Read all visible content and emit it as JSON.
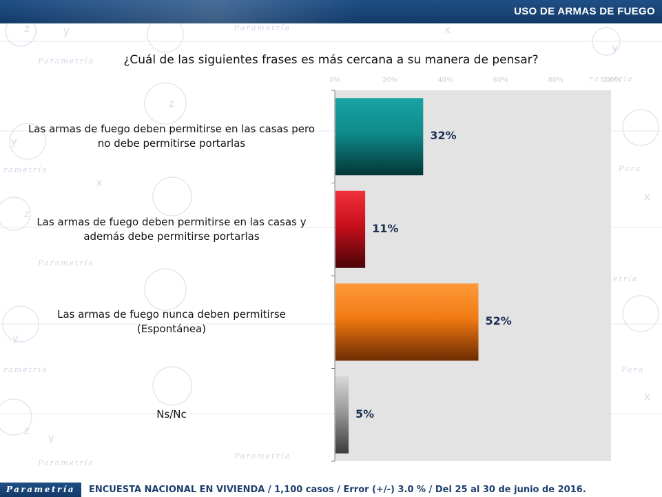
{
  "header": {
    "title": "USO DE ARMAS DE FUEGO"
  },
  "question": "¿Cuál de las siguientes frases es más cercana a su manera de pensar?",
  "axis_ticks": [
    "0%",
    "20%",
    "40%",
    "60%",
    "80%",
    "100%"
  ],
  "chart_data": {
    "type": "bar",
    "orientation": "horizontal",
    "title": "¿Cuál de las siguientes frases es más cercana a su manera de pensar?",
    "xlim": [
      0,
      100
    ],
    "x_ticks": [
      0,
      20,
      40,
      60,
      80,
      100
    ],
    "categories": [
      {
        "line1": "Las armas de fuego deben permitirse en las casas pero",
        "line2": "no debe permitirse portarlas"
      },
      {
        "line1": "Las armas de fuego deben permitirse en las casas y",
        "line2": "además debe permitirse portarlas"
      },
      {
        "line1": "Las armas de fuego nunca deben permitirse",
        "line2": "(Espontánea)"
      },
      {
        "line1": "Ns/Nc",
        "line2": ""
      }
    ],
    "values": [
      32,
      11,
      52,
      5
    ],
    "value_labels": [
      "32%",
      "11%",
      "52%",
      "5%"
    ],
    "bar_colors": [
      {
        "top": "#1aa3a3",
        "mid": "#0f8a8a",
        "bottom": "#043636"
      },
      {
        "top": "#f0303a",
        "mid": "#c8101c",
        "bottom": "#4a0408"
      },
      {
        "top": "#ff9a3a",
        "mid": "#f07a12",
        "bottom": "#6e2c02"
      },
      {
        "top": "#d8d8d8",
        "mid": "#9a9a9a",
        "bottom": "#3c3c3c"
      }
    ],
    "legend": "none",
    "grid": false
  },
  "footer": {
    "logo_text": "Parametría",
    "note": "ENCUESTA NACIONAL EN VIVIENDA / 1,100 casos / Error (+/-) 3.0 % / Del 25 al 30 de junio de 2016."
  }
}
